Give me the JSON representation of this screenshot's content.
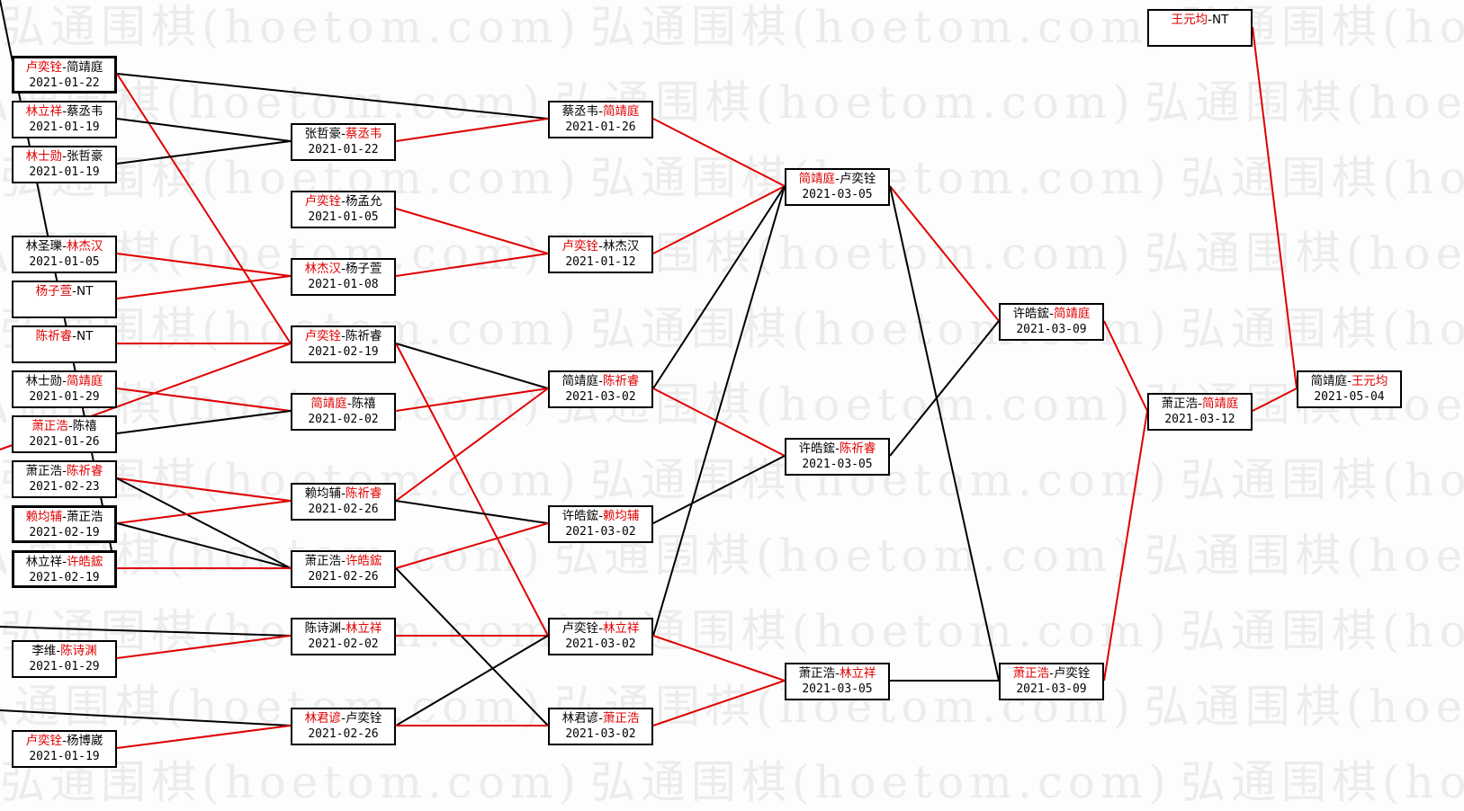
{
  "watermark": "弘通围棋(hoetom.com)",
  "colors": {
    "win": "#e00000",
    "loss_line": "#000000",
    "win_line": "#e00000",
    "border": "#000000"
  },
  "nodes": [
    {
      "p1": "卢奕铨",
      "p2": "简靖庭",
      "winner": 1,
      "date": "2021-01-22"
    },
    {
      "p1": "林立祥",
      "p2": "蔡丞韦",
      "winner": 1,
      "date": "2021-01-19"
    },
    {
      "p1": "林士勋",
      "p2": "张哲豪",
      "winner": 1,
      "date": "2021-01-19"
    },
    {
      "p1": "林圣瓅",
      "p2": "林杰汉",
      "winner": 2,
      "date": "2021-01-05"
    },
    {
      "p1": "杨子萱",
      "p2": "NT",
      "winner": 1,
      "date": ""
    },
    {
      "p1": "陈祈睿",
      "p2": "NT",
      "winner": 1,
      "date": ""
    },
    {
      "p1": "林士勋",
      "p2": "简靖庭",
      "winner": 2,
      "date": "2021-01-29"
    },
    {
      "p1": "萧正浩",
      "p2": "陈禧",
      "winner": 1,
      "date": "2021-01-26"
    },
    {
      "p1": "萧正浩",
      "p2": "陈祈睿",
      "winner": 2,
      "date": "2021-02-23"
    },
    {
      "p1": "赖均辅",
      "p2": "萧正浩",
      "winner": 1,
      "date": "2021-02-19"
    },
    {
      "p1": "林立祥",
      "p2": "许皓鋐",
      "winner": 2,
      "date": "2021-02-19"
    },
    {
      "p1": "李维",
      "p2": "陈诗渊",
      "winner": 2,
      "date": "2021-01-29"
    },
    {
      "p1": "卢奕铨",
      "p2": "杨博崴",
      "winner": 1,
      "date": "2021-01-19"
    },
    {
      "p1": "张哲豪",
      "p2": "蔡丞韦",
      "winner": 2,
      "date": "2021-01-22"
    },
    {
      "p1": "卢奕铨",
      "p2": "杨孟允",
      "winner": 1,
      "date": "2021-01-05"
    },
    {
      "p1": "林杰汉",
      "p2": "杨子萱",
      "winner": 1,
      "date": "2021-01-08"
    },
    {
      "p1": "卢奕铨",
      "p2": "陈祈睿",
      "winner": 1,
      "date": "2021-02-19"
    },
    {
      "p1": "简靖庭",
      "p2": "陈禧",
      "winner": 1,
      "date": "2021-02-02"
    },
    {
      "p1": "赖均辅",
      "p2": "陈祈睿",
      "winner": 2,
      "date": "2021-02-26"
    },
    {
      "p1": "萧正浩",
      "p2": "许皓鋐",
      "winner": 2,
      "date": "2021-02-26"
    },
    {
      "p1": "陈诗渊",
      "p2": "林立祥",
      "winner": 2,
      "date": "2021-02-02"
    },
    {
      "p1": "林君谚",
      "p2": "卢奕铨",
      "winner": 1,
      "date": "2021-02-26"
    },
    {
      "p1": "蔡丞韦",
      "p2": "简靖庭",
      "winner": 2,
      "date": "2021-01-26"
    },
    {
      "p1": "卢奕铨",
      "p2": "林杰汉",
      "winner": 1,
      "date": "2021-01-12"
    },
    {
      "p1": "简靖庭",
      "p2": "陈祈睿",
      "winner": 2,
      "date": "2021-03-02"
    },
    {
      "p1": "许皓鋐",
      "p2": "赖均辅",
      "winner": 2,
      "date": "2021-03-02"
    },
    {
      "p1": "卢奕铨",
      "p2": "林立祥",
      "winner": 2,
      "date": "2021-03-02"
    },
    {
      "p1": "林君谚",
      "p2": "萧正浩",
      "winner": 2,
      "date": "2021-03-02"
    },
    {
      "p1": "简靖庭",
      "p2": "卢奕铨",
      "winner": 1,
      "date": "2021-03-05"
    },
    {
      "p1": "许皓鋐",
      "p2": "陈祈睿",
      "winner": 2,
      "date": "2021-03-05"
    },
    {
      "p1": "萧正浩",
      "p2": "林立祥",
      "winner": 2,
      "date": "2021-03-05"
    },
    {
      "p1": "许皓鋐",
      "p2": "简靖庭",
      "winner": 2,
      "date": "2021-03-09"
    },
    {
      "p1": "萧正浩",
      "p2": "卢奕铨",
      "winner": 1,
      "date": "2021-03-09"
    },
    {
      "p1": "王元均",
      "p2": "NT",
      "winner": 1,
      "date": ""
    },
    {
      "p1": "萧正浩",
      "p2": "简靖庭",
      "winner": 2,
      "date": "2021-03-12"
    },
    {
      "p1": "简靖庭",
      "p2": "王元均",
      "winner": 2,
      "date": "2021-05-04"
    }
  ],
  "edges": [
    {
      "from": 0,
      "to": 22,
      "color": "black"
    },
    {
      "from": 0,
      "to": 16,
      "color": "red"
    },
    {
      "from": 1,
      "to": 13,
      "color": "black"
    },
    {
      "from": 2,
      "to": 13,
      "color": "black"
    },
    {
      "from": 3,
      "to": 15,
      "color": "red"
    },
    {
      "from": 4,
      "to": 15,
      "color": "red"
    },
    {
      "from": 5,
      "to": 16,
      "color": "red"
    },
    {
      "from": "offscreen-a",
      "to": 16,
      "color": "red"
    },
    {
      "from": 6,
      "to": 17,
      "color": "red"
    },
    {
      "from": 7,
      "to": 17,
      "color": "black"
    },
    {
      "from": 8,
      "to": 18,
      "color": "red"
    },
    {
      "from": 8,
      "to": 19,
      "color": "black"
    },
    {
      "from": 9,
      "to": 18,
      "color": "red"
    },
    {
      "from": 9,
      "to": 19,
      "color": "black"
    },
    {
      "from": 10,
      "to": 19,
      "color": "red"
    },
    {
      "from": "offscreen-top",
      "to": 10,
      "color": "black"
    },
    {
      "from": "offscreen-b",
      "to": 20,
      "color": "black"
    },
    {
      "from": 11,
      "to": 20,
      "color": "red"
    },
    {
      "from": "offscreen-c",
      "to": 21,
      "color": "black"
    },
    {
      "from": 12,
      "to": 21,
      "color": "red"
    },
    {
      "from": 13,
      "to": 22,
      "color": "red"
    },
    {
      "from": 14,
      "to": 23,
      "color": "red"
    },
    {
      "from": 15,
      "to": 23,
      "color": "red"
    },
    {
      "from": 16,
      "to": 24,
      "color": "black"
    },
    {
      "from": 16,
      "to": 26,
      "color": "red"
    },
    {
      "from": 17,
      "to": 24,
      "color": "red"
    },
    {
      "from": 18,
      "to": 24,
      "color": "red"
    },
    {
      "from": 18,
      "to": 25,
      "color": "black"
    },
    {
      "from": 19,
      "to": 25,
      "color": "red"
    },
    {
      "from": 19,
      "to": 27,
      "color": "black"
    },
    {
      "from": 20,
      "to": 26,
      "color": "red"
    },
    {
      "from": 21,
      "to": 26,
      "color": "black"
    },
    {
      "from": 21,
      "to": 27,
      "color": "red"
    },
    {
      "from": 22,
      "to": 28,
      "color": "red"
    },
    {
      "from": 23,
      "to": 28,
      "color": "red"
    },
    {
      "from": 24,
      "to": 28,
      "color": "black"
    },
    {
      "from": 24,
      "to": 29,
      "color": "red"
    },
    {
      "from": 25,
      "to": 29,
      "color": "black"
    },
    {
      "from": 26,
      "to": 28,
      "color": "black"
    },
    {
      "from": 26,
      "to": 30,
      "color": "red"
    },
    {
      "from": 27,
      "to": 30,
      "color": "red"
    },
    {
      "from": 28,
      "to": 31,
      "color": "red"
    },
    {
      "from": 28,
      "to": 32,
      "color": "black"
    },
    {
      "from": 29,
      "to": 31,
      "color": "black"
    },
    {
      "from": 30,
      "to": 32,
      "color": "black"
    },
    {
      "from": 31,
      "to": 34,
      "color": "red"
    },
    {
      "from": 32,
      "to": 34,
      "color": "red"
    },
    {
      "from": 34,
      "to": 35,
      "color": "red"
    },
    {
      "from": 33,
      "to": 35,
      "color": "red"
    }
  ]
}
